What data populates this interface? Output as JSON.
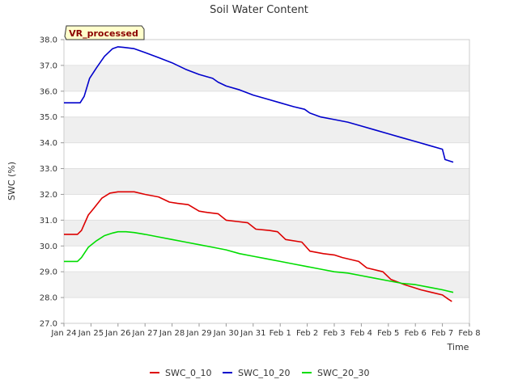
{
  "chart_data": {
    "type": "line",
    "title": "Soil Water Content",
    "xlabel": "Time",
    "ylabel": "SWC (%)",
    "badge": "VR_processed",
    "ylim": [
      27.0,
      38.0
    ],
    "yticks": [
      "27.0",
      "28.0",
      "29.0",
      "30.0",
      "31.0",
      "32.0",
      "33.0",
      "34.0",
      "35.0",
      "36.0",
      "37.0",
      "38.0"
    ],
    "xlim": [
      0,
      15
    ],
    "xticks": [
      {
        "label": "Jan 24",
        "x": 0
      },
      {
        "label": "Jan 25",
        "x": 1
      },
      {
        "label": "Jan 26",
        "x": 2
      },
      {
        "label": "Jan 27",
        "x": 3
      },
      {
        "label": "Jan 28",
        "x": 4
      },
      {
        "label": "Jan 29",
        "x": 5
      },
      {
        "label": "Jan 30",
        "x": 6
      },
      {
        "label": "Jan 31",
        "x": 7
      },
      {
        "label": "Feb 1",
        "x": 8
      },
      {
        "label": "Feb 2",
        "x": 9
      },
      {
        "label": "Feb 3",
        "x": 10
      },
      {
        "label": "Feb 4",
        "x": 11
      },
      {
        "label": "Feb 5",
        "x": 12
      },
      {
        "label": "Feb 6",
        "x": 13
      },
      {
        "label": "Feb 7",
        "x": 14
      },
      {
        "label": "Feb 8",
        "x": 15
      }
    ],
    "grid": "horizontal bands",
    "legend_position": "bottom",
    "series": [
      {
        "name": "SWC_0_10",
        "color": "#dd0000",
        "x": [
          0.0,
          0.5,
          0.65,
          0.9,
          1.1,
          1.4,
          1.7,
          2.0,
          2.3,
          2.6,
          3.0,
          3.5,
          3.9,
          4.2,
          4.6,
          5.0,
          5.3,
          5.7,
          6.0,
          6.4,
          6.8,
          7.1,
          7.6,
          7.9,
          8.2,
          8.8,
          9.1,
          9.6,
          10.0,
          10.3,
          10.9,
          11.2,
          11.8,
          12.1,
          12.6,
          13.2,
          13.6,
          14.0,
          14.2,
          14.35
        ],
        "y": [
          30.45,
          30.45,
          30.6,
          31.2,
          31.45,
          31.85,
          32.05,
          32.1,
          32.1,
          32.1,
          32.0,
          31.9,
          31.7,
          31.65,
          31.6,
          31.35,
          31.3,
          31.25,
          31.0,
          30.95,
          30.9,
          30.65,
          30.6,
          30.55,
          30.25,
          30.15,
          29.8,
          29.7,
          29.65,
          29.55,
          29.4,
          29.15,
          29.0,
          28.7,
          28.5,
          28.3,
          28.2,
          28.1,
          27.95,
          27.85
        ]
      },
      {
        "name": "SWC_10_20",
        "color": "#0000cc",
        "x": [
          0.0,
          0.5,
          0.6,
          0.75,
          0.95,
          1.2,
          1.5,
          1.8,
          2.0,
          2.2,
          2.6,
          3.0,
          3.5,
          4.0,
          4.5,
          5.0,
          5.5,
          5.7,
          6.0,
          6.5,
          7.0,
          7.5,
          8.0,
          8.5,
          8.9,
          9.1,
          9.5,
          10.0,
          10.5,
          11.0,
          11.5,
          12.0,
          12.5,
          13.0,
          13.5,
          14.0,
          14.1,
          14.4
        ],
        "y": [
          35.55,
          35.55,
          35.55,
          35.8,
          36.5,
          36.9,
          37.35,
          37.65,
          37.72,
          37.7,
          37.65,
          37.5,
          37.3,
          37.1,
          36.85,
          36.65,
          36.5,
          36.35,
          36.2,
          36.05,
          35.85,
          35.7,
          35.55,
          35.4,
          35.3,
          35.15,
          35.0,
          34.9,
          34.8,
          34.65,
          34.5,
          34.35,
          34.2,
          34.05,
          33.9,
          33.75,
          33.35,
          33.25
        ]
      },
      {
        "name": "SWC_20_30",
        "color": "#00dd00",
        "x": [
          0.0,
          0.5,
          0.65,
          0.9,
          1.2,
          1.5,
          1.8,
          2.0,
          2.3,
          2.6,
          3.0,
          3.5,
          4.0,
          4.5,
          5.0,
          5.5,
          6.0,
          6.5,
          7.0,
          7.5,
          8.0,
          8.5,
          9.0,
          9.5,
          10.0,
          10.5,
          11.0,
          11.5,
          12.0,
          12.5,
          13.0,
          13.5,
          14.0,
          14.4
        ],
        "y": [
          29.4,
          29.4,
          29.55,
          29.95,
          30.2,
          30.4,
          30.5,
          30.55,
          30.55,
          30.52,
          30.45,
          30.35,
          30.25,
          30.15,
          30.05,
          29.95,
          29.85,
          29.7,
          29.6,
          29.5,
          29.4,
          29.3,
          29.2,
          29.1,
          29.0,
          28.95,
          28.85,
          28.75,
          28.65,
          28.55,
          28.5,
          28.4,
          28.3,
          28.2
        ]
      }
    ]
  }
}
